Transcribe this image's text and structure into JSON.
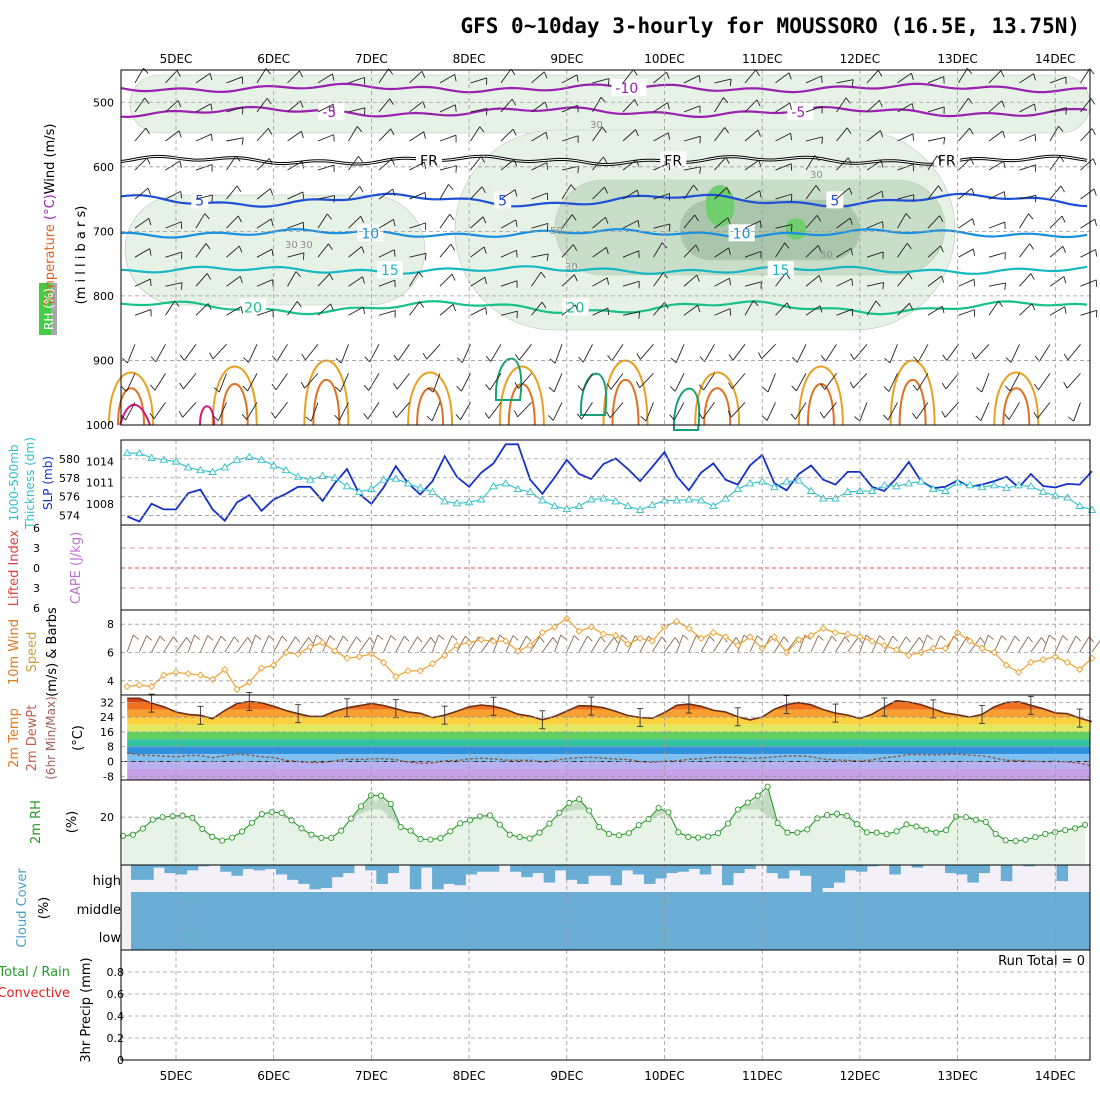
{
  "title": "GFS 0~10day 3-hourly for MOUSSORO (16.5E, 13.75N)",
  "colors": {
    "frame": "#000000",
    "grid": "#9a9a9a",
    "temp_purple": "#9a20b0",
    "temp_black": "#000000",
    "temp_blue": "#1e4fd6",
    "temp_lightblue": "#1a8fe0",
    "temp_cyan": "#16b8c2",
    "temp_teal": "#18c08a",
    "rh_light": "#e5f2e5",
    "rh_mid": "#c9dec9",
    "rh_dark": "#a9c6ad",
    "rh_green": "#6fcf6f",
    "slp": "#1530c8",
    "thickness": "#30c0cc",
    "wind_speed": "#f0a030",
    "barb": "#8a6a50",
    "cloud": "#6aaed6",
    "cloud_bg": "#f4f0f8",
    "rh2m": "#2a9a2a",
    "rh2m_fill": "#e6f3e6",
    "li_zero": "#e05050"
  },
  "chart_data": [
    {
      "id": "upper-air",
      "type": "contour",
      "ylabel_parts": [
        "Wind",
        " (m/s)"
      ],
      "ylabel2_parts": [
        "Temperature",
        " (°C)"
      ],
      "ylabel3": "(m i l l i b a r s)",
      "rh_label": "RH (%)",
      "y_ticks": [
        500,
        600,
        700,
        800,
        900,
        1000
      ],
      "ylim": [
        450,
        1000
      ],
      "x_labels": [
        "5DEC",
        "6DEC",
        "7DEC",
        "8DEC",
        "9DEC",
        "10DEC",
        "11DEC",
        "12DEC",
        "13DEC",
        "14DEC"
      ],
      "isotherms": [
        {
          "label": "-10",
          "base": 478,
          "amp": 6,
          "color_key": "temp_purple",
          "labels_at": [
            4.6
          ]
        },
        {
          "label": "-5",
          "base": 515,
          "amp": 8,
          "color_key": "temp_purple",
          "labels_at": [
            1.6,
            6.4
          ]
        },
        {
          "label": "FR",
          "base": 590,
          "amp": 6,
          "color_key": "temp_black",
          "labels_at": [
            2.6,
            5.1,
            7.9
          ]
        },
        {
          "label": "5",
          "base": 652,
          "amp": 12,
          "color_key": "temp_blue",
          "labels_at": [
            0.3,
            3.4,
            6.8
          ]
        },
        {
          "label": "10",
          "base": 703,
          "amp": 6,
          "color_key": "temp_lightblue",
          "labels_at": [
            2.0,
            5.8
          ]
        },
        {
          "label": "15",
          "base": 760,
          "amp": 5,
          "color_key": "temp_cyan",
          "labels_at": [
            2.2,
            6.2
          ]
        },
        {
          "label": "20",
          "base": 818,
          "amp": 12,
          "color_key": "temp_teal",
          "labels_at": [
            0.8,
            4.1
          ]
        }
      ],
      "rh_contour_labels": [
        "30",
        "30",
        "30",
        "30",
        "50",
        "50",
        "30"
      ]
    },
    {
      "id": "thickness-slp",
      "type": "line",
      "ylabel_left": "1000-500mb Thickness (dm)",
      "ylabel_right": "SLP (mb)",
      "left_ticks": [
        574,
        576,
        578,
        580
      ],
      "left_lim": [
        573,
        582
      ],
      "right_ticks": [
        1008,
        1011,
        1014
      ],
      "right_lim": [
        1005,
        1017
      ],
      "series": [
        {
          "color_key": "slp",
          "axis": "right",
          "marker": "none",
          "values": [
            1006.2,
            1005.5,
            1008.0,
            1007.2,
            1007.2,
            1009.5,
            1010.0,
            1007.2,
            1005.6,
            1008.2,
            1009.2,
            1007.0,
            1008.6,
            1009.4,
            1010.4,
            1010.4,
            1008.4,
            1010.9,
            1012.9,
            1009.4,
            1008.0,
            1010.3,
            1013.3,
            1010.9,
            1009.3,
            1011.2,
            1014.7,
            1011.8,
            1010.4,
            1012.4,
            1013.7,
            1016.4,
            1016.4,
            1011.4,
            1009.4,
            1011.7,
            1014.2,
            1012.2,
            1011.5,
            1013.6,
            1014.4,
            1012.9,
            1011.2,
            1013.2,
            1015.3,
            1011.9,
            1009.9,
            1012.4,
            1013.7,
            1011.4,
            1010.7,
            1013.4,
            1014.9,
            1010.9,
            1009.9,
            1012.2,
            1013.4,
            1011.4,
            1010.7,
            1012.5,
            1012.5,
            1010.4,
            1009.8,
            1011.6,
            1013.9,
            1011.2,
            1010.2,
            1010.4,
            1011.3,
            1010.4,
            1010.7,
            1011.2,
            1011.8,
            1010.3,
            1012.2,
            1010.5,
            1010.3,
            1010.8,
            1010.7,
            1012.6
          ]
        },
        {
          "color_key": "thickness",
          "axis": "left",
          "marker": "triangle",
          "values": [
            580.6,
            580.6,
            580.1,
            579.9,
            579.7,
            579.1,
            578.8,
            578.6,
            579.1,
            579.9,
            580.2,
            579.9,
            579.3,
            578.8,
            578.1,
            577.8,
            578.2,
            578.0,
            577.1,
            576.5,
            576.8,
            577.8,
            577.9,
            577.4,
            576.9,
            576.5,
            575.5,
            575.3,
            575.4,
            575.7,
            577.1,
            577.4,
            576.8,
            576.5,
            575.6,
            575.0,
            574.7,
            575.0,
            575.7,
            575.8,
            575.5,
            575.0,
            574.6,
            575.1,
            575.6,
            575.6,
            575.7,
            575.6,
            575.0,
            575.8,
            576.8,
            577.4,
            577.6,
            577.0,
            577.6,
            577.7,
            576.6,
            575.8,
            575.8,
            576.5,
            576.6,
            576.6,
            577.2,
            577.1,
            577.4,
            577.6,
            576.8,
            576.6,
            577.5,
            577.2,
            577.0,
            577.2,
            576.9,
            577.2,
            577.1,
            576.5,
            576.1,
            575.9,
            575.0,
            574.6
          ]
        }
      ]
    },
    {
      "id": "lifted-cape",
      "type": "line",
      "ylabel_left": "Lifted Index",
      "ylabel_right": "CAPE (J/kg)",
      "ticks": [
        6,
        3,
        0,
        3,
        6
      ],
      "series": []
    },
    {
      "id": "wind10m",
      "type": "line",
      "ylabel": "10m Wind Speed (m/s) & Barbs",
      "ticks": [
        4,
        6,
        8
      ],
      "ylim": [
        3,
        9
      ],
      "series": [
        {
          "color_key": "wind_speed",
          "marker": "diamond",
          "values": [
            3.6,
            3.7,
            3.6,
            4.4,
            4.6,
            4.5,
            4.4,
            4.1,
            4.8,
            3.4,
            3.9,
            4.9,
            5.1,
            6.0,
            5.9,
            6.4,
            6.7,
            6.1,
            5.6,
            5.7,
            5.9,
            5.3,
            4.3,
            4.7,
            4.7,
            5.2,
            5.8,
            6.5,
            6.7,
            6.9,
            6.8,
            6.8,
            6.1,
            6.5,
            7.4,
            7.8,
            8.4,
            7.5,
            7.8,
            7.3,
            7.2,
            6.6,
            7.0,
            6.8,
            7.8,
            8.2,
            7.7,
            7.0,
            7.4,
            7.1,
            6.5,
            7.1,
            6.3,
            7.1,
            6.0,
            6.9,
            7.2,
            7.7,
            7.4,
            7.3,
            7.1,
            6.8,
            6.5,
            6.2,
            5.8,
            6.0,
            6.3,
            6.3,
            7.4,
            6.8,
            6.3,
            6.0,
            5.1,
            4.6,
            5.3,
            5.5,
            5.7,
            5.3,
            4.8,
            5.6
          ]
        }
      ]
    },
    {
      "id": "temp2m",
      "type": "area",
      "ylabel": "2m Temp 2m DewPt (6hr Min/Max) (°C)",
      "ticks": [
        32,
        24,
        16,
        8,
        0,
        -8
      ],
      "ylim": [
        -10,
        36
      ],
      "series": [
        {
          "name": "temperature",
          "values": [
            34.2,
            34.2,
            31.6,
            29.6,
            26.8,
            25.5,
            25.0,
            23.2,
            27.6,
            31.4,
            32.5,
            31.8,
            29.9,
            27.6,
            25.9,
            24.4,
            24.5,
            27.2,
            29.1,
            30.2,
            31.4,
            30.3,
            28.6,
            26.8,
            26.1,
            23.7,
            25.1,
            27.2,
            29.6,
            30.6,
            29.9,
            28.2,
            25.6,
            24.6,
            22.6,
            24.4,
            27.3,
            30.2,
            30.0,
            29.2,
            27.1,
            24.9,
            23.8,
            23.4,
            26.5,
            30.4,
            31.1,
            29.9,
            27.7,
            26.8,
            24.2,
            22.5,
            24.1,
            28.3,
            30.8,
            31.9,
            30.7,
            28.1,
            26.2,
            25.1,
            23.3,
            25.6,
            29.5,
            32.9,
            32.2,
            30.8,
            28.5,
            26.2,
            25.3,
            24.0,
            25.5,
            29.6,
            32.0,
            32.3,
            30.4,
            28.6,
            26.3,
            25.9,
            23.5,
            21.6
          ]
        },
        {
          "name": "dewpoint",
          "values": [
            4.6,
            3.6,
            3.3,
            3.0,
            2.5,
            3.3,
            3.3,
            2.0,
            3.2,
            4.0,
            3.5,
            2.6,
            2.1,
            0.6,
            0.0,
            -0.6,
            -0.5,
            0.5,
            1.2,
            1.1,
            1.4,
            1.6,
            1.0,
            -0.2,
            -1.0,
            -0.8,
            0.5,
            0.5,
            1.4,
            1.8,
            1.5,
            0.7,
            0.6,
            0.7,
            -0.3,
            0.6,
            1.6,
            2.0,
            2.3,
            1.8,
            1.3,
            1.1,
            0.0,
            -0.4,
            0.1,
            0.4,
            1.2,
            1.5,
            2.3,
            2.3,
            2.2,
            1.6,
            2.0,
            2.5,
            3.0,
            3.1,
            2.6,
            1.3,
            0.8,
            0.6,
            0.3,
            0.9,
            2.0,
            2.7,
            3.8,
            3.8,
            3.6,
            3.8,
            4.0,
            3.5,
            3.1,
            2.0,
            0.6,
            0.6,
            0.1,
            -0.1,
            0.2,
            -0.3,
            -0.9,
            -2.5
          ]
        }
      ]
    },
    {
      "id": "rh2m",
      "type": "area",
      "ylabel": "2m RH (%)",
      "ticks": [
        20
      ],
      "ylim": [
        2,
        34
      ],
      "series": [
        {
          "name": "rh",
          "marker": "circle",
          "values": [
            13.0,
            13.4,
            15.7,
            19.1,
            20.0,
            20.4,
            20.6,
            19.8,
            15.6,
            12.6,
            11.2,
            12.3,
            14.6,
            17.9,
            21.2,
            21.9,
            21.6,
            18.8,
            15.8,
            13.4,
            12.2,
            12.2,
            14.9,
            19.5,
            24.1,
            28.2,
            28.1,
            25.0,
            16.3,
            14.9,
            11.8,
            11.6,
            12.1,
            14.7,
            17.7,
            18.9,
            20.3,
            20.7,
            17.2,
            13.4,
            12.5,
            12.0,
            14.2,
            17.6,
            21.7,
            25.4,
            26.8,
            22.5,
            16.3,
            13.7,
            13.2,
            14.0,
            17.0,
            19.3,
            23.5,
            21.8,
            14.3,
            12.6,
            12.3,
            12.7,
            14.0,
            17.6,
            22.9,
            25.5,
            28.1,
            31.5,
            17.8,
            14.2,
            14.2,
            15.4,
            19.6,
            20.8,
            21.3,
            20.5,
            17.4,
            14.3,
            14.2,
            13.6,
            14.7,
            17.3,
            16.5,
            15.3,
            14.2,
            15.1,
            20.2,
            20.0,
            19.0,
            18.2,
            13.7,
            11.3,
            11.1,
            11.5,
            12.5,
            13.7,
            14.4,
            15.1,
            15.8,
            17.1
          ]
        }
      ]
    },
    {
      "id": "cloud-cover",
      "type": "bar",
      "ylabel": "Cloud Cover (%)",
      "levels": [
        "high",
        "middle",
        "low"
      ],
      "high_values": [
        0.55,
        0.55,
        0.1,
        0.3,
        0.35,
        0.2,
        0.05,
        0.0,
        0.25,
        0.4,
        0.15,
        0.2,
        0.15,
        0.35,
        0.55,
        0.7,
        0.9,
        0.85,
        0.45,
        0.3,
        0.0,
        0.2,
        0.7,
        0.3,
        0.0,
        0.9,
        0.1,
        0.9,
        0.7,
        0.75,
        0.35,
        0.25,
        0.25,
        0.0,
        0.25,
        0.45,
        0.3,
        0.65,
        0.2,
        0.55,
        0.7,
        0.4,
        0.4,
        0.75,
        0.2,
        0.35,
        0.7,
        0.5,
        0.3,
        0.25,
        0.15,
        0.35,
        0.0,
        0.75,
        0.3,
        0.15,
        0.0,
        0.3,
        0.5,
        0.2,
        0.4,
        1.0,
        0.85,
        0.65,
        0.2,
        0.25,
        0.05,
        0.0,
        0.35,
        0.0,
        0.1,
        0.0,
        0.0,
        0.3,
        0.35,
        0.65,
        0.3,
        0.0,
        0.6,
        0.0,
        0.05,
        0.0,
        0.0,
        0.6,
        0.0,
        0.0
      ]
    },
    {
      "id": "precip",
      "type": "bar",
      "ylabel": "3hr Precip (mm)",
      "ylabel_top": "Total / Rain",
      "ylabel_bottom": "Convective",
      "ticks": [
        0,
        0.2,
        0.4,
        0.6,
        0.8
      ],
      "tick_labels": [
        "0",
        "0.2",
        "0.4",
        "0.6",
        "0.8"
      ],
      "ylim": [
        0,
        1
      ],
      "run_total": "Run Total = 0",
      "values": []
    }
  ]
}
